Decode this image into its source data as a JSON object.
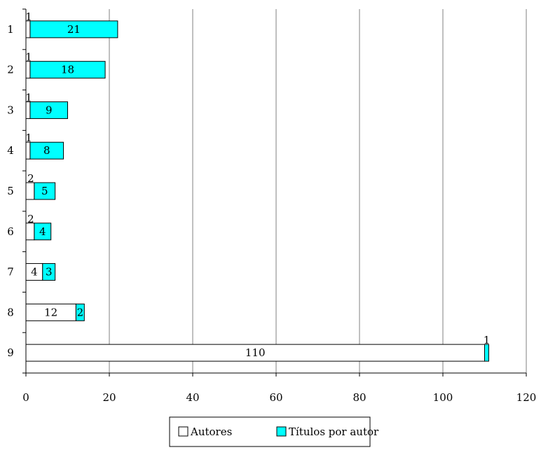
{
  "chart_data": {
    "type": "bar",
    "orientation": "horizontal",
    "stacked": true,
    "categories": [
      "1",
      "2",
      "3",
      "4",
      "5",
      "6",
      "7",
      "8",
      "9"
    ],
    "series": [
      {
        "name": "Autores",
        "values": [
          1,
          1,
          1,
          1,
          2,
          2,
          4,
          12,
          110
        ],
        "color": "#ffffff"
      },
      {
        "name": "Títulos por autor",
        "values": [
          21,
          18,
          9,
          8,
          5,
          4,
          3,
          2,
          1
        ],
        "color": "#00ffff"
      }
    ],
    "xlim": [
      0,
      120
    ],
    "xticks": [
      0,
      20,
      40,
      60,
      80,
      100,
      120
    ],
    "grid": "vertical",
    "legend": {
      "position": "bottom",
      "entries": [
        "Autores",
        "Títulos por autor"
      ]
    },
    "title": "",
    "xlabel": "",
    "ylabel": ""
  }
}
